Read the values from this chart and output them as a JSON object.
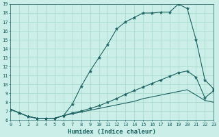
{
  "xlabel": "Humidex (Indice chaleur)",
  "bg_color": "#cceee8",
  "line_color": "#1a6060",
  "grid_color": "#aaddcc",
  "xmin": 0,
  "xmax": 23,
  "ymin": 6,
  "ymax": 19,
  "hours": [
    0,
    1,
    2,
    3,
    4,
    5,
    6,
    7,
    8,
    9,
    10,
    11,
    12,
    13,
    14,
    15,
    16,
    17,
    18,
    19,
    20,
    21,
    22,
    23
  ],
  "curve_main": [
    7.2,
    6.8,
    6.4,
    6.2,
    6.2,
    6.2,
    6.5,
    7.8,
    9.8,
    11.5,
    13.0,
    14.5,
    16.2,
    17.0,
    17.5,
    18.0,
    18.0,
    18.1,
    18.1,
    19.0,
    18.5,
    15.0,
    10.5,
    9.5
  ],
  "curve_mid": [
    7.2,
    6.8,
    6.4,
    6.2,
    6.2,
    6.2,
    6.5,
    6.8,
    7.0,
    7.3,
    7.6,
    8.0,
    8.4,
    8.9,
    9.3,
    9.7,
    10.1,
    10.5,
    10.9,
    11.3,
    11.5,
    10.8,
    8.5,
    9.3
  ],
  "curve_low": [
    7.2,
    6.8,
    6.4,
    6.2,
    6.2,
    6.2,
    6.5,
    6.7,
    6.9,
    7.1,
    7.3,
    7.5,
    7.7,
    7.9,
    8.1,
    8.4,
    8.6,
    8.8,
    9.0,
    9.2,
    9.4,
    8.8,
    8.2,
    8.0
  ]
}
